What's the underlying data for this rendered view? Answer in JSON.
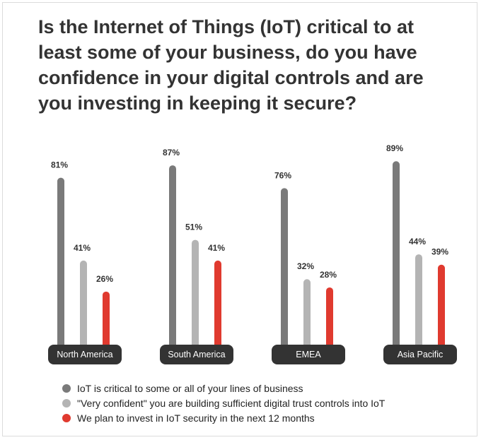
{
  "colors": {
    "series": [
      "#7a7a7a",
      "#b4b4b4",
      "#e03a2f"
    ],
    "region_label_bg": "#333333",
    "region_label_text": "#ffffff",
    "baseline": "#cccccc"
  },
  "chart_data": {
    "type": "bar",
    "title": "Is the Internet of Things (IoT) critical to at least some of your business, do you have confidence in your digital controls and are you investing in keeping it secure?",
    "categories": [
      "North America",
      "South America",
      "EMEA",
      "Asia Pacific"
    ],
    "series": [
      {
        "name": "IoT is critical to some or all of your lines of business",
        "values": [
          81,
          87,
          76,
          89
        ]
      },
      {
        "name": "\"Very confident\" you are building sufficient digital trust controls into IoT",
        "values": [
          41,
          51,
          32,
          44
        ]
      },
      {
        "name": "We plan to invest in IoT security in the next 12 months",
        "values": [
          26,
          41,
          28,
          39
        ]
      }
    ],
    "value_suffix": "%",
    "ylim": [
      0,
      100
    ],
    "grid": false,
    "legend_position": "bottom-left"
  }
}
